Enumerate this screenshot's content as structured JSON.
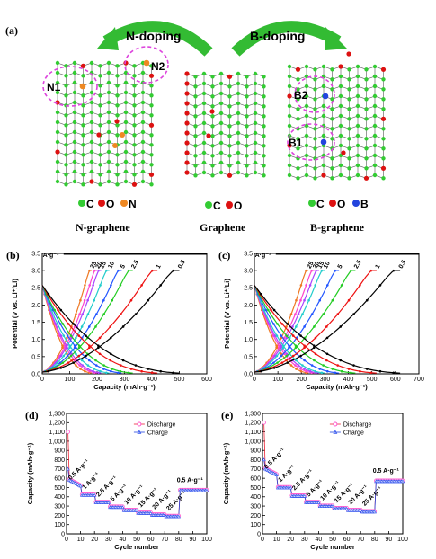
{
  "panel_a": {
    "label": "(a)",
    "n_doping": "N-doping",
    "b_doping": "B-doping",
    "n1": "N1",
    "n2": "N2",
    "b1": "B1",
    "b2": "B2",
    "legend_n": [
      "C",
      "O",
      "N"
    ],
    "legend_g": [
      "C",
      "O"
    ],
    "legend_b": [
      "C",
      "O",
      "B"
    ],
    "name_n": "N-graphene",
    "name_g": "Graphene",
    "name_b": "B-graphene",
    "colors": {
      "carbon": "#33cc33",
      "oxygen": "#dd1111",
      "nitrogen": "#ee8822",
      "boron": "#2244dd",
      "arrow": "#33bb33",
      "ring": "#dd44dd"
    }
  },
  "chart_data": [
    {
      "panel": "(b)",
      "type": "line",
      "xlabel": "Capacity (mAh·g⁻¹)",
      "ylabel": "Potential (V vs. Li⁺/Li)",
      "xlim": [
        0,
        600
      ],
      "ylim": [
        0,
        3.5
      ],
      "xticks": [
        "0",
        "100",
        "200",
        "300",
        "400",
        "500",
        "600"
      ],
      "yticks": [
        "0.0",
        "0.5",
        "1.0",
        "1.5",
        "2.0",
        "2.5",
        "3.0",
        "3.5"
      ],
      "rate_unit": "A·g⁻¹",
      "rates": [
        "25",
        "20",
        "15",
        "10",
        "5",
        "2.5",
        "1",
        "0.5"
      ],
      "colors": [
        "#ee7722",
        "#ff44cc",
        "#aa44ff",
        "#22cccc",
        "#2255ff",
        "#22cc22",
        "#ee1111",
        "#000000"
      ],
      "capacities": [
        180,
        200,
        215,
        245,
        290,
        330,
        420,
        500
      ]
    },
    {
      "panel": "(c)",
      "type": "line",
      "xlabel": "Capacity (mAh·g⁻¹)",
      "ylabel": "Potential (V vs. Li⁺/Li)",
      "xlim": [
        0,
        700
      ],
      "ylim": [
        0,
        3.5
      ],
      "xticks": [
        "0",
        "100",
        "200",
        "300",
        "400",
        "500",
        "600",
        "700"
      ],
      "yticks": [
        "0.0",
        "0.5",
        "1.0",
        "1.5",
        "2.0",
        "2.5",
        "3.0",
        "3.5"
      ],
      "rate_unit": "A·g⁻¹",
      "rates": [
        "25",
        "20",
        "15",
        "10",
        "5",
        "2.5",
        "1",
        "0.5"
      ],
      "colors": [
        "#ee7722",
        "#ff44cc",
        "#aa44ff",
        "#22cccc",
        "#2255ff",
        "#22cc22",
        "#ee1111",
        "#000000"
      ],
      "capacities": [
        230,
        255,
        275,
        300,
        360,
        430,
        520,
        620
      ]
    },
    {
      "panel": "(d)",
      "type": "scatter",
      "xlabel": "Cycle number",
      "ylabel": "Capacity (mAh·g⁻¹)",
      "xlim": [
        0,
        100
      ],
      "ylim": [
        0,
        1300
      ],
      "xticks": [
        "0",
        "10",
        "20",
        "30",
        "40",
        "50",
        "60",
        "70",
        "80",
        "90",
        "100"
      ],
      "yticks": [
        "0",
        "100",
        "200",
        "300",
        "400",
        "500",
        "600",
        "700",
        "800",
        "900",
        "1,000",
        "1,100",
        "1,200",
        "1,300"
      ],
      "legend": [
        "Discharge",
        "Charge"
      ],
      "rate_labels": [
        "0.5 A·g⁻¹",
        "1 A·g⁻¹",
        "2.5 A·g⁻¹",
        "5 A·g⁻¹",
        "10 A·g⁻¹",
        "15 A·g⁻¹",
        "20 A·g⁻¹",
        "25 A·g⁻¹",
        "0.5 A·g⁻¹"
      ],
      "segments": [
        {
          "start": 1,
          "end": 10,
          "value": 520
        },
        {
          "start": 11,
          "end": 20,
          "value": 420
        },
        {
          "start": 21,
          "end": 30,
          "value": 340
        },
        {
          "start": 31,
          "end": 40,
          "value": 290
        },
        {
          "start": 41,
          "end": 50,
          "value": 255
        },
        {
          "start": 51,
          "end": 60,
          "value": 225
        },
        {
          "start": 61,
          "end": 70,
          "value": 205
        },
        {
          "start": 71,
          "end": 80,
          "value": 190
        },
        {
          "start": 81,
          "end": 100,
          "value": 470
        }
      ],
      "first_cycle": {
        "discharge": 1100,
        "charge": 700
      }
    },
    {
      "panel": "(e)",
      "type": "scatter",
      "xlabel": "Cycle number",
      "ylabel": "Capacity (mAh·g⁻¹)",
      "xlim": [
        0,
        100
      ],
      "ylim": [
        0,
        1300
      ],
      "xticks": [
        "0",
        "10",
        "20",
        "30",
        "40",
        "50",
        "60",
        "70",
        "80",
        "90",
        "100"
      ],
      "yticks": [
        "0",
        "100",
        "200",
        "300",
        "400",
        "500",
        "600",
        "700",
        "800",
        "900",
        "1,000",
        "1,100",
        "1,200",
        "1,300"
      ],
      "legend": [
        "Discharge",
        "Charge"
      ],
      "rate_labels": [
        "0.5 A·g⁻¹",
        "1 A·g⁻¹",
        "2.5 A·g⁻¹",
        "5 A·g⁻¹",
        "10 A·g⁻¹",
        "15 A·g⁻¹",
        "20 A·g⁻¹",
        "25 A·g⁻¹",
        "0.5 A·g⁻¹"
      ],
      "segments": [
        {
          "start": 1,
          "end": 10,
          "value": 640
        },
        {
          "start": 11,
          "end": 20,
          "value": 500
        },
        {
          "start": 21,
          "end": 30,
          "value": 410
        },
        {
          "start": 31,
          "end": 40,
          "value": 340
        },
        {
          "start": 41,
          "end": 50,
          "value": 300
        },
        {
          "start": 51,
          "end": 60,
          "value": 275
        },
        {
          "start": 61,
          "end": 70,
          "value": 255
        },
        {
          "start": 71,
          "end": 80,
          "value": 240
        },
        {
          "start": 81,
          "end": 100,
          "value": 570
        }
      ],
      "first_cycle": {
        "discharge": 1200,
        "charge": 800
      }
    }
  ]
}
